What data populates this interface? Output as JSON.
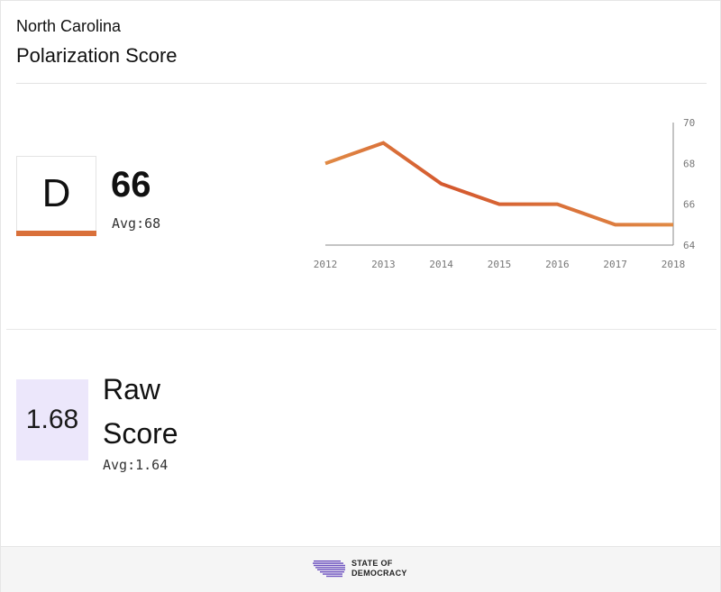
{
  "header": {
    "state": "North Carolina",
    "metric": "Polarization Score"
  },
  "grade": {
    "letter": "D",
    "value": "66",
    "avg_text": "Avg:68"
  },
  "raw": {
    "value": "1.68",
    "label": "Raw Score",
    "avg_text": "Avg:1.64"
  },
  "footer": {
    "logo_line1": "STATE OF",
    "logo_line2": "DEMOCRACY"
  },
  "colors": {
    "accent": "#d9703a",
    "line_start": "#e08a45",
    "line_mid": "#d4582e",
    "raw_bg": "#ece7fb",
    "logo": "#6b4fbf"
  },
  "chart_data": {
    "type": "line",
    "x": [
      "2012",
      "2013",
      "2014",
      "2015",
      "2016",
      "2017",
      "2018"
    ],
    "values": [
      68,
      69,
      67,
      66,
      66,
      65,
      65
    ],
    "y_ticks": [
      "64",
      "66",
      "68",
      "70"
    ],
    "ylim": [
      64,
      70
    ],
    "title": "",
    "xlabel": "",
    "ylabel": "",
    "grid": false,
    "y_axis_side": "right"
  }
}
